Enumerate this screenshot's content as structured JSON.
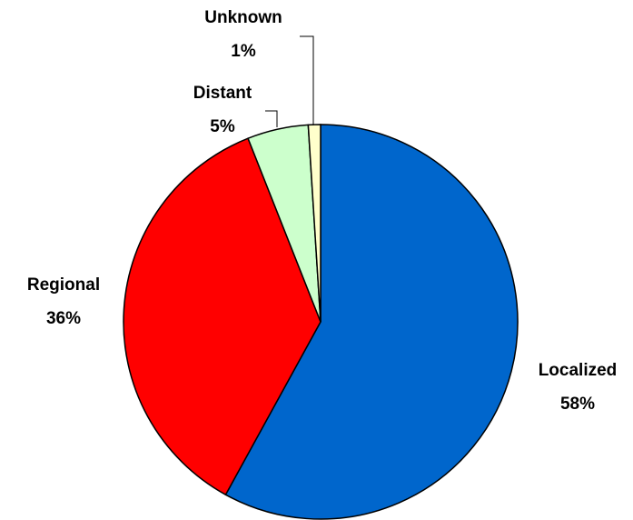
{
  "chart_data": {
    "type": "pie",
    "categories": [
      "Localized",
      "Regional",
      "Distant",
      "Unknown"
    ],
    "values": [
      58,
      36,
      5,
      1
    ],
    "value_labels": [
      "58%",
      "36%",
      "5%",
      "1%"
    ],
    "colors": [
      "#0066cc",
      "#ff0000",
      "#ccffcc",
      "#ffffcc"
    ]
  }
}
